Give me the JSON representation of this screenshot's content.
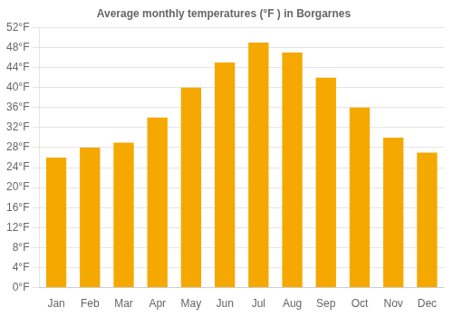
{
  "chart_data": {
    "type": "bar",
    "title": "Average monthly temperatures (°F ) in Borgarnes",
    "categories": [
      "Jan",
      "Feb",
      "Mar",
      "Apr",
      "May",
      "Jun",
      "Jul",
      "Aug",
      "Sep",
      "Oct",
      "Nov",
      "Dec"
    ],
    "values": [
      26.0,
      28.0,
      29.0,
      34.0,
      40.0,
      45.0,
      49.0,
      47.0,
      42.0,
      36.0,
      30.0,
      27.0
    ],
    "color": "#F5A800",
    "ylim": [
      0,
      52
    ],
    "yticks": [
      {
        "value": 0,
        "label": "0°F"
      },
      {
        "value": 4,
        "label": "4°F"
      },
      {
        "value": 8,
        "label": "8°F"
      },
      {
        "value": 12,
        "label": "12°F"
      },
      {
        "value": 16,
        "label": "16°F"
      },
      {
        "value": 20,
        "label": "20°F"
      },
      {
        "value": 24,
        "label": "24°F"
      },
      {
        "value": 28,
        "label": "28°F"
      },
      {
        "value": 32,
        "label": "32°F"
      },
      {
        "value": 36,
        "label": "36°F"
      },
      {
        "value": 40,
        "label": "40°F"
      },
      {
        "value": 44,
        "label": "44°F"
      },
      {
        "value": 48,
        "label": "48°F"
      },
      {
        "value": 52,
        "label": "52°F"
      }
    ],
    "grid": true
  }
}
